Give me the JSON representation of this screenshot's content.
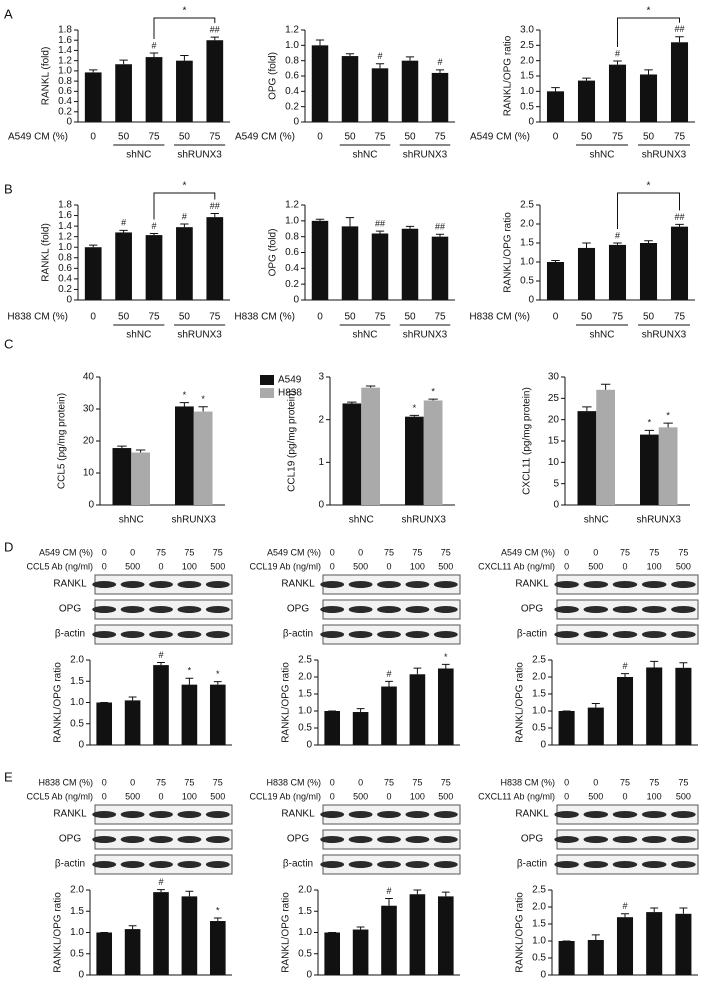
{
  "panel_labels": [
    "A",
    "B",
    "C",
    "D",
    "E"
  ],
  "chart_data": [
    {
      "type": "bar",
      "ylabel": "RANKL (fold)",
      "xlabel": "A549 CM (%)",
      "categories": [
        "0",
        "50",
        "75",
        "50",
        "75"
      ],
      "groups": [
        {
          "name": "shNC",
          "bars": [
            1,
            2
          ]
        },
        {
          "name": "shRUNX3",
          "bars": [
            3,
            4
          ]
        }
      ],
      "values": [
        0.97,
        1.13,
        1.27,
        1.2,
        1.6
      ],
      "errors": [
        0.05,
        0.08,
        0.08,
        0.1,
        0.06
      ],
      "annotations": [
        null,
        null,
        "#",
        null,
        "##"
      ],
      "bracket": {
        "label": "*",
        "bars": [
          2,
          4
        ]
      },
      "color": "#111111",
      "ylim": [
        0,
        1.8
      ],
      "yticks": [
        0,
        0.2,
        0.4,
        0.6,
        0.8,
        {
          "value": 1,
          "label": "1.0"
        },
        1.2,
        1.4,
        1.6,
        1.8
      ]
    },
    {
      "type": "bar",
      "ylabel": "OPG (fold)",
      "xlabel": "A549 CM (%)",
      "categories": [
        "0",
        "50",
        "75",
        "50",
        "75"
      ],
      "groups": [
        {
          "name": "shNC",
          "bars": [
            1,
            2
          ]
        },
        {
          "name": "shRUNX3",
          "bars": [
            3,
            4
          ]
        }
      ],
      "values": [
        1.0,
        0.86,
        0.7,
        0.8,
        0.64
      ],
      "errors": [
        0.07,
        0.03,
        0.06,
        0.05,
        0.04
      ],
      "annotations": [
        null,
        null,
        "#",
        null,
        "#"
      ],
      "color": "#111111",
      "ylim": [
        0,
        1.2
      ],
      "yticks": [
        0,
        0.2,
        0.4,
        0.6,
        0.8,
        {
          "value": 1,
          "label": "1.0"
        },
        1.2
      ]
    },
    {
      "type": "bar",
      "ylabel": "RANKL/OPG ratio",
      "xlabel": "A549 CM (%)",
      "categories": [
        "0",
        "50",
        "75",
        "50",
        "75"
      ],
      "groups": [
        {
          "name": "shNC",
          "bars": [
            1,
            2
          ]
        },
        {
          "name": "shRUNX3",
          "bars": [
            3,
            4
          ]
        }
      ],
      "values": [
        1.0,
        1.35,
        1.87,
        1.55,
        2.6
      ],
      "errors": [
        0.12,
        0.08,
        0.12,
        0.15,
        0.18
      ],
      "annotations": [
        null,
        null,
        "#",
        null,
        "##"
      ],
      "bracket": {
        "label": "*",
        "bars": [
          2,
          4
        ]
      },
      "color": "#111111",
      "ylim": [
        0,
        3
      ],
      "yticks": [
        0,
        0.5,
        {
          "value": 1,
          "label": "1.0"
        },
        1.5,
        {
          "value": 2,
          "label": "2.0"
        },
        2.5,
        {
          "value": 3,
          "label": "3.0"
        }
      ]
    },
    {
      "type": "bar",
      "ylabel": "RANKL (fold)",
      "xlabel": "H838 CM (%)",
      "categories": [
        "0",
        "50",
        "75",
        "50",
        "75"
      ],
      "groups": [
        {
          "name": "shNC",
          "bars": [
            1,
            2
          ]
        },
        {
          "name": "shRUNX3",
          "bars": [
            3,
            4
          ]
        }
      ],
      "values": [
        1.0,
        1.28,
        1.23,
        1.38,
        1.57
      ],
      "errors": [
        0.04,
        0.04,
        0.03,
        0.06,
        0.07
      ],
      "annotations": [
        null,
        "#",
        "#",
        "#",
        "##"
      ],
      "bracket": {
        "label": "*",
        "bars": [
          2,
          4
        ]
      },
      "color": "#111111",
      "ylim": [
        0,
        1.8
      ],
      "yticks": [
        0,
        0.2,
        0.4,
        0.6,
        0.8,
        {
          "value": 1,
          "label": "1.0"
        },
        1.2,
        1.4,
        1.6,
        1.8
      ]
    },
    {
      "type": "bar",
      "ylabel": "OPG (fold)",
      "xlabel": "H838 CM (%)",
      "categories": [
        "0",
        "50",
        "75",
        "50",
        "75"
      ],
      "groups": [
        {
          "name": "shNC",
          "bars": [
            1,
            2
          ]
        },
        {
          "name": "shRUNX3",
          "bars": [
            3,
            4
          ]
        }
      ],
      "values": [
        1.0,
        0.93,
        0.84,
        0.9,
        0.8
      ],
      "errors": [
        0.02,
        0.11,
        0.03,
        0.03,
        0.03
      ],
      "annotations": [
        null,
        null,
        "##",
        null,
        "##"
      ],
      "color": "#111111",
      "ylim": [
        0,
        1.2
      ],
      "yticks": [
        0,
        0.2,
        0.4,
        0.6,
        0.8,
        {
          "value": 1,
          "label": "1.0"
        },
        1.2
      ]
    },
    {
      "type": "bar",
      "ylabel": "RANKL/OPG ratio",
      "xlabel": "H838 CM (%)",
      "categories": [
        "0",
        "50",
        "75",
        "50",
        "75"
      ],
      "groups": [
        {
          "name": "shNC",
          "bars": [
            1,
            2
          ]
        },
        {
          "name": "shRUNX3",
          "bars": [
            3,
            4
          ]
        }
      ],
      "values": [
        1.0,
        1.37,
        1.45,
        1.5,
        1.93
      ],
      "errors": [
        0.04,
        0.13,
        0.05,
        0.06,
        0.06
      ],
      "annotations": [
        null,
        null,
        "#",
        null,
        "##"
      ],
      "bracket": {
        "label": "*",
        "bars": [
          2,
          4
        ]
      },
      "color": "#111111",
      "ylim": [
        0,
        2.5
      ],
      "yticks": [
        0,
        0.5,
        {
          "value": 1,
          "label": "1.0"
        },
        1.5,
        {
          "value": 2,
          "label": "2.0"
        },
        2.5
      ]
    },
    {
      "type": "grouped_bar",
      "ylabel": "CCL5 (pg/mg protein)",
      "categories": [
        "shNC",
        "shRUNX3"
      ],
      "series": [
        {
          "name": "A549",
          "color": "#111111",
          "values": [
            17.8,
            30.8
          ],
          "errors": [
            0.6,
            1.2
          ],
          "annotations": [
            null,
            "*"
          ]
        },
        {
          "name": "H838",
          "color": "#aaaaaa",
          "values": [
            16.4,
            29.2
          ],
          "errors": [
            0.8,
            1.5
          ],
          "annotations": [
            null,
            "*"
          ]
        }
      ],
      "ylim": [
        0,
        40
      ],
      "yticks": [
        0,
        10,
        20,
        30,
        40
      ]
    },
    {
      "type": "grouped_bar",
      "ylabel": "CCL19 (pg/mg protein)",
      "categories": [
        "shNC",
        "shRUNX3"
      ],
      "series": [
        {
          "color": "#111111",
          "values": [
            2.38,
            2.07
          ],
          "errors": [
            0.03,
            0.03
          ],
          "annotations": [
            null,
            "*"
          ]
        },
        {
          "color": "#aaaaaa",
          "values": [
            2.75,
            2.45
          ],
          "errors": [
            0.04,
            0.03
          ],
          "annotations": [
            null,
            "*"
          ]
        }
      ],
      "ylim": [
        0,
        3
      ],
      "yticks": [
        0,
        1,
        2,
        3
      ]
    },
    {
      "type": "grouped_bar",
      "ylabel": "CXCL11 (pg/mg protein)",
      "categories": [
        "shNC",
        "shRUNX3"
      ],
      "series": [
        {
          "color": "#111111",
          "values": [
            22,
            16.5
          ],
          "errors": [
            1,
            1
          ],
          "annotations": [
            null,
            "*"
          ]
        },
        {
          "color": "#aaaaaa",
          "values": [
            27,
            18.2
          ],
          "errors": [
            1.3,
            1
          ],
          "annotations": [
            null,
            "*"
          ]
        }
      ],
      "ylim": [
        0,
        30
      ],
      "yticks": [
        0,
        5,
        10,
        15,
        20,
        25,
        30
      ]
    },
    {
      "type": "bar",
      "ylabel": "RANKL/OPG ratio",
      "blot": {
        "rows": [
          {
            "label": "A549 CM (%)",
            "lanes": [
              "0",
              "0",
              "75",
              "75",
              "75"
            ]
          },
          {
            "label": "CCL5 Ab (ng/ml)",
            "lanes": [
              "0",
              "500",
              "0",
              "100",
              "500"
            ]
          }
        ],
        "bands": [
          "RANKL",
          "OPG",
          "β-actin"
        ]
      },
      "values": [
        1.0,
        1.05,
        1.88,
        1.42,
        1.42
      ],
      "errors": [
        0,
        0.08,
        0.06,
        0.15,
        0.07
      ],
      "annotations": [
        null,
        null,
        "#",
        "*",
        "*"
      ],
      "color": "#111111",
      "ylim": [
        0,
        2
      ],
      "yticks": [
        0,
        0.5,
        {
          "value": 1,
          "label": "1.0"
        },
        1.5,
        {
          "value": 2,
          "label": "2.0"
        }
      ]
    },
    {
      "type": "bar",
      "ylabel": "RANKL/OPG ratio",
      "blot": {
        "rows": [
          {
            "label": "A549 CM (%)",
            "lanes": [
              "0",
              "0",
              "75",
              "75",
              "75"
            ]
          },
          {
            "label": "CCL19 Ab (ng/ml)",
            "lanes": [
              "0",
              "500",
              "0",
              "100",
              "500"
            ]
          }
        ],
        "bands": [
          "RANKL",
          "OPG",
          "β-actin"
        ]
      },
      "values": [
        1.0,
        0.97,
        1.72,
        2.08,
        2.25
      ],
      "errors": [
        0,
        0.1,
        0.15,
        0.18,
        0.12
      ],
      "annotations": [
        null,
        null,
        "#",
        null,
        "*"
      ],
      "color": "#111111",
      "ylim": [
        0,
        2.5
      ],
      "yticks": [
        0,
        0.5,
        {
          "value": 1,
          "label": "1.0"
        },
        1.5,
        {
          "value": 2,
          "label": "2.0"
        },
        2.5
      ]
    },
    {
      "type": "bar",
      "ylabel": "RANKL/OPG ratio",
      "blot": {
        "rows": [
          {
            "label": "A549 CM (%)",
            "lanes": [
              "0",
              "0",
              "75",
              "75",
              "75"
            ]
          },
          {
            "label": "CXCL11 Ab (ng/ml)",
            "lanes": [
              "0",
              "500",
              "0",
              "100",
              "500"
            ]
          }
        ],
        "bands": [
          "RANKL",
          "OPG",
          "β-actin"
        ]
      },
      "values": [
        1.0,
        1.1,
        2.0,
        2.28,
        2.27
      ],
      "errors": [
        0,
        0.12,
        0.1,
        0.18,
        0.15
      ],
      "annotations": [
        null,
        null,
        "#",
        null,
        null
      ],
      "color": "#111111",
      "ylim": [
        0,
        2.5
      ],
      "yticks": [
        0,
        0.5,
        {
          "value": 1,
          "label": "1.0"
        },
        1.5,
        {
          "value": 2,
          "label": "2.0"
        },
        2.5
      ]
    },
    {
      "type": "bar",
      "ylabel": "RANKL/OPG ratio",
      "blot": {
        "rows": [
          {
            "label": "H838 CM (%)",
            "lanes": [
              "0",
              "0",
              "75",
              "75",
              "75"
            ]
          },
          {
            "label": "CCL5 Ab (ng/ml)",
            "lanes": [
              "0",
              "500",
              "0",
              "100",
              "500"
            ]
          }
        ],
        "bands": [
          "RANKL",
          "OPG",
          "β-actin"
        ]
      },
      "values": [
        1.0,
        1.08,
        1.95,
        1.85,
        1.27
      ],
      "errors": [
        0,
        0.08,
        0.06,
        0.12,
        0.07
      ],
      "annotations": [
        null,
        null,
        "#",
        null,
        "*"
      ],
      "color": "#111111",
      "ylim": [
        0,
        2
      ],
      "yticks": [
        0,
        0.5,
        {
          "value": 1,
          "label": "1.0"
        },
        1.5,
        {
          "value": 2,
          "label": "2.0"
        }
      ]
    },
    {
      "type": "bar",
      "ylabel": "RANKL/OPG ratio",
      "blot": {
        "rows": [
          {
            "label": "H838 CM (%)",
            "lanes": [
              "0",
              "0",
              "75",
              "75",
              "75"
            ]
          },
          {
            "label": "CCL19 Ab (ng/ml)",
            "lanes": [
              "0",
              "500",
              "0",
              "100",
              "500"
            ]
          }
        ],
        "bands": [
          "RANKL",
          "OPG",
          "β-actin"
        ]
      },
      "values": [
        1.0,
        1.07,
        1.63,
        1.9,
        1.85
      ],
      "errors": [
        0,
        0.06,
        0.17,
        0.1,
        0.1
      ],
      "annotations": [
        null,
        null,
        "#",
        null,
        null
      ],
      "color": "#111111",
      "ylim": [
        0,
        2
      ],
      "yticks": [
        0,
        0.5,
        {
          "value": 1,
          "label": "1.0"
        },
        1.5,
        {
          "value": 2,
          "label": "2.0"
        }
      ]
    },
    {
      "type": "bar",
      "ylabel": "RANKL/OPG ratio",
      "blot": {
        "rows": [
          {
            "label": "H838 CM (%)",
            "lanes": [
              "0",
              "0",
              "75",
              "75",
              "75"
            ]
          },
          {
            "label": "CXCL11 Ab (ng/ml)",
            "lanes": [
              "0",
              "500",
              "0",
              "100",
              "500"
            ]
          }
        ],
        "bands": [
          "RANKL",
          "OPG",
          "β-actin"
        ]
      },
      "values": [
        1.0,
        1.03,
        1.7,
        1.85,
        1.8
      ],
      "errors": [
        0,
        0.15,
        0.1,
        0.12,
        0.17
      ],
      "annotations": [
        null,
        null,
        "#",
        null,
        null
      ],
      "color": "#111111",
      "ylim": [
        0,
        2.5
      ],
      "yticks": [
        0,
        0.5,
        {
          "value": 1,
          "label": "1.0"
        },
        1.5,
        {
          "value": 2,
          "label": "2.0"
        },
        2.5
      ]
    }
  ]
}
